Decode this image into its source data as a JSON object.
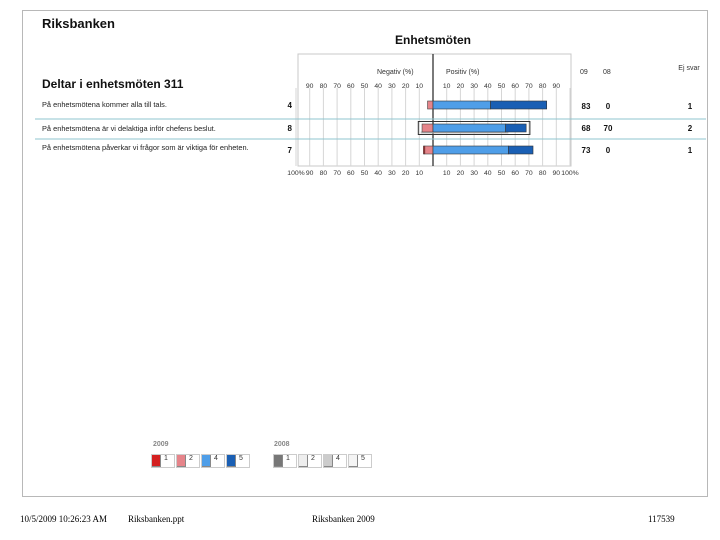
{
  "company": "Riksbanken",
  "chart_title": "Enhetsmöten",
  "group_title": "Deltar i enhetsmöten 311",
  "headers": {
    "negative": "Negativ (%)",
    "positive": "Positiv (%)",
    "col_2009": "09",
    "col_2008": "08",
    "ej_svar": "Ej svar"
  },
  "axis": {
    "neg_ticks": [
      "90",
      "80",
      "70",
      "60",
      "50",
      "40",
      "30",
      "20",
      "10"
    ],
    "pos_ticks": [
      "10",
      "20",
      "30",
      "40",
      "50",
      "60",
      "70",
      "80",
      "90"
    ],
    "bottom_ticks": [
      "100%",
      "90",
      "80",
      "70",
      "60",
      "50",
      "40",
      "30",
      "20",
      "10",
      "",
      "10",
      "20",
      "30",
      "40",
      "50",
      "60",
      "70",
      "80",
      "90",
      "100%"
    ]
  },
  "colors": {
    "neg_strong": "#d42020",
    "neg_light": "#e6848a",
    "pos_light": "#4f9ee8",
    "pos_strong": "#1a5fb4",
    "grey_strong": "#555555",
    "grey_light": "#bdbdbd",
    "highlight_line": "#8fc4cf"
  },
  "chart_data": {
    "type": "bar",
    "categories": [
      "På enhetsmötena kommer alla till tals.",
      "På enhetsmötena är vi delaktiga inför chefens beslut.",
      "På enhetsmötena påverkar vi frågor som är viktiga för enheten."
    ],
    "series": [
      {
        "name": "1",
        "year": "2009",
        "values": [
          0,
          0,
          1
        ]
      },
      {
        "name": "2",
        "year": "2009",
        "values": [
          4,
          8,
          6
        ]
      },
      {
        "name": "4",
        "year": "2009",
        "values": [
          42,
          53,
          55
        ]
      },
      {
        "name": "5",
        "year": "2009",
        "values": [
          41,
          15,
          18
        ]
      },
      {
        "name": "1",
        "year": "2008",
        "values": [
          null,
          1,
          null
        ]
      },
      {
        "name": "2",
        "year": "2008",
        "values": [
          null,
          9,
          null
        ]
      },
      {
        "name": "4",
        "year": "2008",
        "values": [
          null,
          55,
          null
        ]
      },
      {
        "name": "5",
        "year": "2008",
        "values": [
          null,
          15,
          null
        ]
      }
    ],
    "n_values": [
      "4",
      "8",
      "7"
    ],
    "index_2009": [
      "83",
      "68",
      "73"
    ],
    "index_2008": [
      "0",
      "70",
      "0"
    ],
    "ej_svar": [
      "1",
      "2",
      "1"
    ],
    "xlim": [
      -100,
      100
    ],
    "legend_placement": "bottom-left"
  },
  "legend": {
    "year_2009": "2009",
    "year_2008": "2008",
    "items_2009": [
      "1",
      "2",
      "4",
      "5"
    ],
    "items_2008": [
      "1",
      "2",
      "4",
      "5"
    ]
  },
  "footer": {
    "datetime": "10/5/2009 10:26:23 AM",
    "filename": "Riksbanken.ppt",
    "center": "Riksbanken 2009",
    "right": "117539"
  }
}
